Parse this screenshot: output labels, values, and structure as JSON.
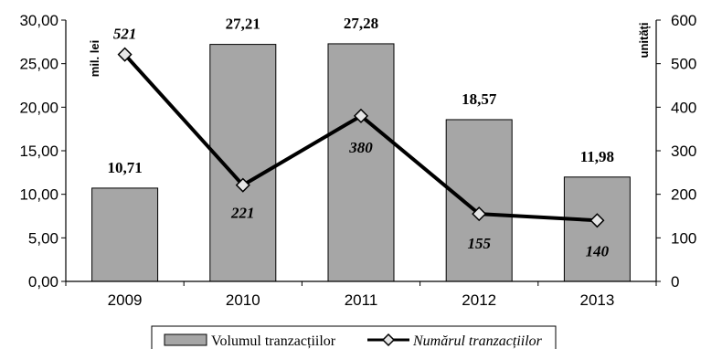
{
  "chart_data": {
    "type": "bar",
    "categories": [
      "2009",
      "2010",
      "2011",
      "2012",
      "2013"
    ],
    "series": [
      {
        "name": "Volumul tranzacțiilor",
        "type": "bar",
        "axis": "left",
        "values": [
          10.71,
          27.21,
          27.28,
          18.57,
          11.98
        ],
        "labels": [
          "10,71",
          "27,21",
          "27,28",
          "18,57",
          "11,98"
        ],
        "color": "#a6a6a6"
      },
      {
        "name": "Numărul tranzacțiilor",
        "type": "line",
        "axis": "right",
        "values": [
          521,
          221,
          380,
          155,
          140
        ],
        "labels": [
          "521",
          "221",
          "380",
          "155",
          "140"
        ],
        "color": "#000000",
        "marker": "diamond"
      }
    ],
    "ylabel_left": "mil. lei",
    "ylabel_right": "unități",
    "ylim_left": [
      0,
      30
    ],
    "ylim_right": [
      0,
      600
    ],
    "yticks_left": [
      "0,00",
      "5,00",
      "10,00",
      "15,00",
      "20,00",
      "25,00",
      "30,00"
    ],
    "yticks_right": [
      "0",
      "100",
      "200",
      "300",
      "400",
      "500",
      "600"
    ],
    "grid": false,
    "legend_position": "bottom"
  }
}
